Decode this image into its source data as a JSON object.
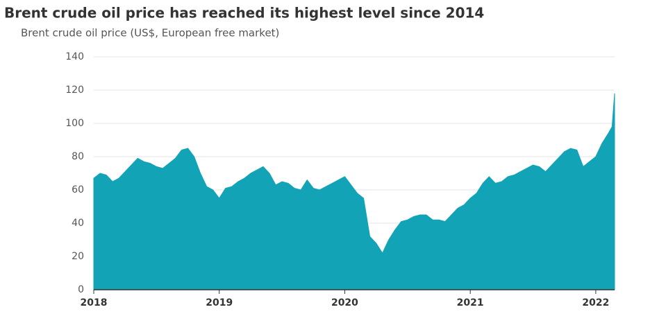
{
  "chart_data": {
    "type": "area",
    "title": "Brent crude oil price has reached its highest level since 2014",
    "subtitle": "Brent crude oil price (US$, European free market)",
    "x": [
      2018,
      2018.05,
      2018.1,
      2018.15,
      2018.2,
      2018.25,
      2018.3,
      2018.35,
      2018.4,
      2018.45,
      2018.5,
      2018.55,
      2018.6,
      2018.65,
      2018.7,
      2018.75,
      2018.8,
      2018.85,
      2018.9,
      2018.95,
      2019,
      2019.05,
      2019.1,
      2019.15,
      2019.2,
      2019.25,
      2019.3,
      2019.35,
      2019.4,
      2019.45,
      2019.5,
      2019.55,
      2019.6,
      2019.65,
      2019.7,
      2019.75,
      2019.8,
      2019.85,
      2019.9,
      2019.95,
      2020,
      2020.05,
      2020.1,
      2020.15,
      2020.2,
      2020.25,
      2020.3,
      2020.35,
      2020.4,
      2020.45,
      2020.5,
      2020.55,
      2020.6,
      2020.65,
      2020.7,
      2020.75,
      2020.8,
      2020.85,
      2020.9,
      2020.95,
      2021,
      2021.05,
      2021.1,
      2021.15,
      2021.2,
      2021.25,
      2021.3,
      2021.35,
      2021.4,
      2021.45,
      2021.5,
      2021.55,
      2021.6,
      2021.65,
      2021.7,
      2021.75,
      2021.8,
      2021.85,
      2021.9,
      2021.95,
      2022,
      2022.05,
      2022.1,
      2022.13,
      2022.15
    ],
    "values": [
      67,
      70,
      69,
      65,
      67,
      71,
      75,
      79,
      77,
      76,
      74,
      73,
      76,
      79,
      84,
      85,
      80,
      70,
      62,
      60,
      55,
      61,
      62,
      65,
      67,
      70,
      72,
      74,
      70,
      63,
      65,
      64,
      61,
      60,
      66,
      61,
      60,
      62,
      64,
      66,
      68,
      63,
      58,
      55,
      32,
      28,
      22,
      30,
      36,
      41,
      42,
      44,
      45,
      45,
      42,
      42,
      41,
      45,
      49,
      51,
      55,
      58,
      64,
      68,
      64,
      65,
      68,
      69,
      71,
      73,
      75,
      74,
      71,
      75,
      79,
      83,
      85,
      84,
      74,
      77,
      80,
      88,
      94,
      98,
      118
    ],
    "color": "#12a4b6",
    "xlim": [
      2018,
      2022.15
    ],
    "xticks": [
      2018,
      2019,
      2020,
      2021,
      2022
    ],
    "ylim": [
      0,
      140
    ],
    "yticks": [
      0,
      20,
      40,
      60,
      80,
      100,
      120,
      140
    ],
    "grid": true
  }
}
